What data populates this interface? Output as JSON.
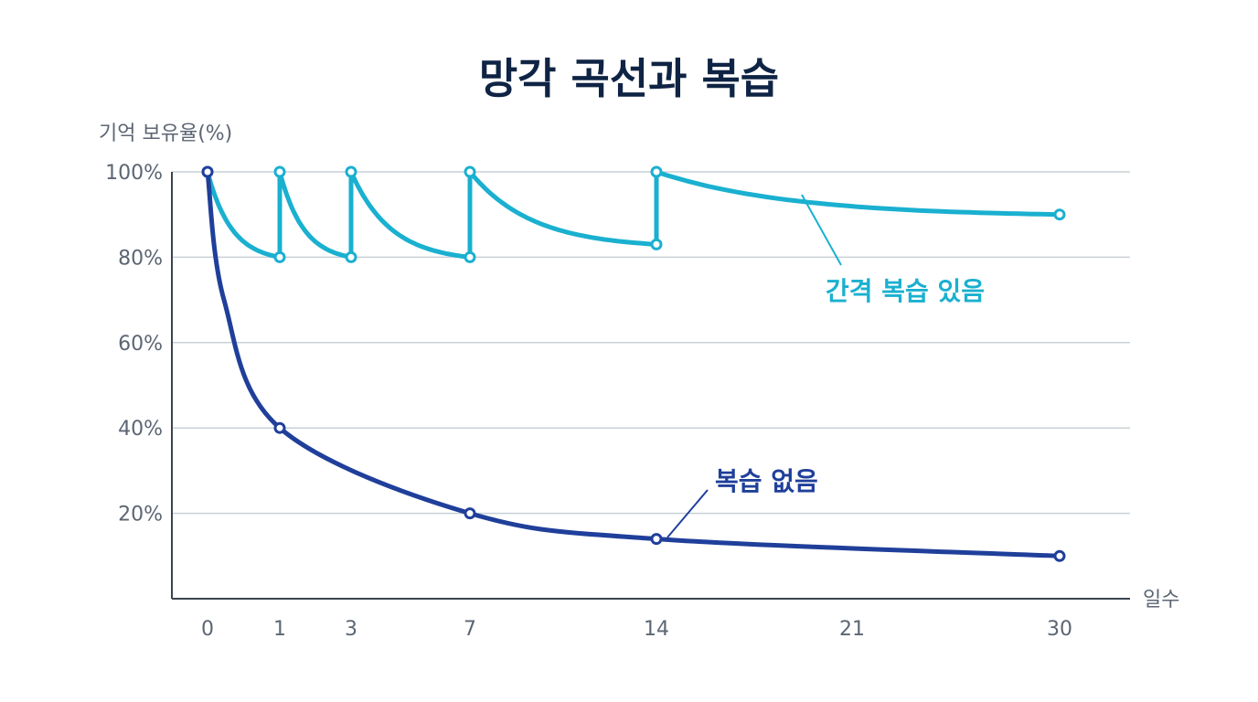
{
  "chart_data": {
    "type": "line",
    "title": "망각 곡선과 복습",
    "ylabel": "기억 보유율(%)",
    "xlabel": "일수",
    "x_ticks": [
      0,
      1,
      3,
      7,
      14,
      21,
      30
    ],
    "y_ticks": [
      20,
      40,
      60,
      80,
      100
    ],
    "y_tick_labels": [
      "20%",
      "40%",
      "60%",
      "80%",
      "100%"
    ],
    "xlim": [
      0,
      30
    ],
    "ylim": [
      0,
      100
    ],
    "grid": true,
    "series": [
      {
        "name": "간격 복습 있음",
        "color": "#1ab0d0",
        "segments": [
          {
            "x0": 0,
            "x1": 1,
            "y0": 100,
            "y1": 80
          },
          {
            "x0": 1,
            "x1": 3,
            "y0": 100,
            "y1": 80
          },
          {
            "x0": 3,
            "x1": 7,
            "y0": 100,
            "y1": 80
          },
          {
            "x0": 7,
            "x1": 14,
            "y0": 100,
            "y1": 83
          },
          {
            "x0": 14,
            "x1": 30,
            "y0": 100,
            "y1": 90
          }
        ],
        "points": [
          {
            "x": 0,
            "y": 100
          },
          {
            "x": 1,
            "y": 80
          },
          {
            "x": 1,
            "y": 100
          },
          {
            "x": 3,
            "y": 80
          },
          {
            "x": 3,
            "y": 100
          },
          {
            "x": 7,
            "y": 80
          },
          {
            "x": 7,
            "y": 100
          },
          {
            "x": 14,
            "y": 83
          },
          {
            "x": 14,
            "y": 100
          },
          {
            "x": 30,
            "y": 90
          }
        ]
      },
      {
        "name": "복습 없음",
        "color": "#1f3f9a",
        "points": [
          {
            "x": 0,
            "y": 100
          },
          {
            "x": 1,
            "y": 40
          },
          {
            "x": 7,
            "y": 20
          },
          {
            "x": 14,
            "y": 14
          },
          {
            "x": 30,
            "y": 10
          }
        ]
      }
    ]
  }
}
